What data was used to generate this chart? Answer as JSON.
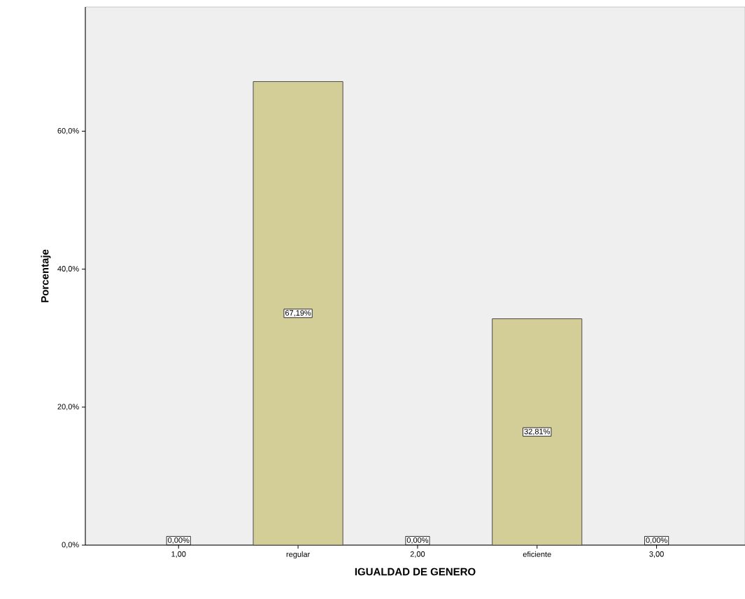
{
  "chart_data": {
    "type": "bar",
    "xlabel": "IGUALDAD DE GENERO",
    "ylabel": "Porcentaje",
    "categories": [
      "1,00",
      "regular",
      "2,00",
      "eficiente",
      "3,00"
    ],
    "values": [
      0,
      67.19,
      0,
      32.81,
      0
    ],
    "value_labels": [
      "0,00%",
      "67,19%",
      "0,00%",
      "32,81%",
      "0,00%"
    ],
    "color": "#d3cd98",
    "ylim": [
      0,
      78
    ],
    "yticks": [
      {
        "value": 0,
        "label": "0,0%"
      },
      {
        "value": 20,
        "label": "20,0%"
      },
      {
        "value": 40,
        "label": "40,0%"
      },
      {
        "value": 60,
        "label": "60,0%"
      }
    ],
    "grid": false
  }
}
